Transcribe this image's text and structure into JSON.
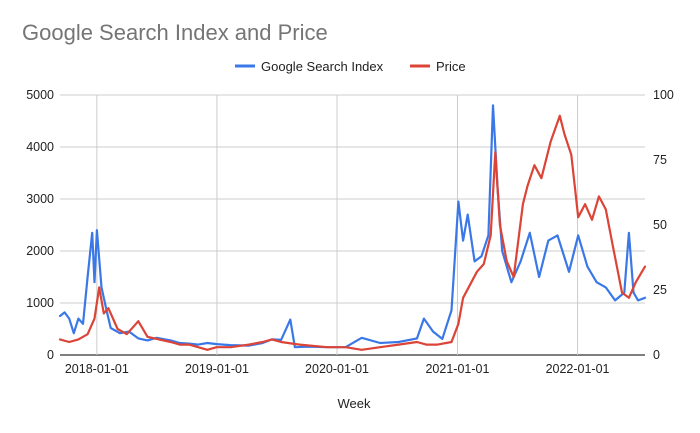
{
  "chart_data": {
    "type": "line",
    "title": "Google Search Index and Price",
    "xlabel": "Week",
    "ylabel_left": "",
    "ylabel_right": "",
    "x_axis": {
      "type": "date",
      "range": [
        "2017-09-11",
        "2022-07-25"
      ],
      "ticks": [
        "2018-01-01",
        "2019-01-01",
        "2020-01-01",
        "2021-01-01",
        "2022-01-01"
      ]
    },
    "y_left": {
      "range": [
        0,
        5000
      ],
      "ticks": [
        "0",
        "1000",
        "2000",
        "3000",
        "4000",
        "5000"
      ]
    },
    "y_right": {
      "range": [
        0,
        100
      ],
      "ticks": [
        "0",
        "25",
        "50",
        "75",
        "100"
      ]
    },
    "grid": true,
    "legend_position": "top",
    "series": [
      {
        "name": "Google Search Index",
        "axis": "left",
        "color": "#3b78e7",
        "points": [
          [
            "2017-09-11",
            750
          ],
          [
            "2017-09-25",
            820
          ],
          [
            "2017-10-09",
            700
          ],
          [
            "2017-10-23",
            420
          ],
          [
            "2017-11-06",
            700
          ],
          [
            "2017-11-20",
            600
          ],
          [
            "2017-12-04",
            1500
          ],
          [
            "2017-12-18",
            2350
          ],
          [
            "2017-12-25",
            1400
          ],
          [
            "2018-01-01",
            2400
          ],
          [
            "2018-01-15",
            1300
          ],
          [
            "2018-01-29",
            900
          ],
          [
            "2018-02-12",
            520
          ],
          [
            "2018-03-12",
            420
          ],
          [
            "2018-04-09",
            450
          ],
          [
            "2018-05-07",
            320
          ],
          [
            "2018-06-04",
            280
          ],
          [
            "2018-07-02",
            330
          ],
          [
            "2018-08-13",
            280
          ],
          [
            "2018-09-10",
            230
          ],
          [
            "2018-10-08",
            220
          ],
          [
            "2018-11-05",
            200
          ],
          [
            "2018-12-03",
            230
          ],
          [
            "2018-12-31",
            210
          ],
          [
            "2019-02-11",
            190
          ],
          [
            "2019-04-08",
            180
          ],
          [
            "2019-05-20",
            230
          ],
          [
            "2019-06-17",
            300
          ],
          [
            "2019-07-15",
            290
          ],
          [
            "2019-08-12",
            680
          ],
          [
            "2019-08-26",
            150
          ],
          [
            "2019-10-07",
            160
          ],
          [
            "2019-12-02",
            150
          ],
          [
            "2020-01-27",
            150
          ],
          [
            "2020-03-16",
            330
          ],
          [
            "2020-05-11",
            230
          ],
          [
            "2020-07-06",
            250
          ],
          [
            "2020-08-31",
            320
          ],
          [
            "2020-09-21",
            700
          ],
          [
            "2020-10-19",
            450
          ],
          [
            "2020-11-16",
            310
          ],
          [
            "2020-12-14",
            860
          ],
          [
            "2021-01-04",
            2950
          ],
          [
            "2021-01-18",
            2200
          ],
          [
            "2021-02-01",
            2700
          ],
          [
            "2021-02-22",
            1800
          ],
          [
            "2021-03-15",
            1900
          ],
          [
            "2021-04-05",
            2300
          ],
          [
            "2021-04-19",
            4800
          ],
          [
            "2021-05-03",
            3200
          ],
          [
            "2021-05-17",
            2000
          ],
          [
            "2021-06-14",
            1400
          ],
          [
            "2021-07-12",
            1800
          ],
          [
            "2021-08-09",
            2350
          ],
          [
            "2021-09-06",
            1500
          ],
          [
            "2021-10-04",
            2200
          ],
          [
            "2021-11-01",
            2300
          ],
          [
            "2021-12-06",
            1600
          ],
          [
            "2022-01-03",
            2300
          ],
          [
            "2022-01-31",
            1700
          ],
          [
            "2022-02-28",
            1400
          ],
          [
            "2022-03-28",
            1300
          ],
          [
            "2022-04-25",
            1050
          ],
          [
            "2022-05-23",
            1200
          ],
          [
            "2022-06-06",
            2350
          ],
          [
            "2022-06-20",
            1200
          ],
          [
            "2022-07-04",
            1050
          ],
          [
            "2022-07-25",
            1100
          ]
        ]
      },
      {
        "name": "Price",
        "axis": "right",
        "color": "#db4437",
        "points": [
          [
            "2017-09-11",
            6
          ],
          [
            "2017-10-09",
            5
          ],
          [
            "2017-11-06",
            6
          ],
          [
            "2017-12-04",
            8
          ],
          [
            "2017-12-25",
            14
          ],
          [
            "2018-01-08",
            26
          ],
          [
            "2018-01-22",
            16
          ],
          [
            "2018-02-05",
            18
          ],
          [
            "2018-03-05",
            10
          ],
          [
            "2018-04-02",
            8
          ],
          [
            "2018-05-07",
            13
          ],
          [
            "2018-06-04",
            7
          ],
          [
            "2018-07-09",
            6
          ],
          [
            "2018-08-13",
            5
          ],
          [
            "2018-09-10",
            4
          ],
          [
            "2018-10-08",
            4
          ],
          [
            "2018-11-05",
            3
          ],
          [
            "2018-12-03",
            2
          ],
          [
            "2018-12-31",
            3
          ],
          [
            "2019-02-11",
            3
          ],
          [
            "2019-04-08",
            4
          ],
          [
            "2019-05-20",
            5
          ],
          [
            "2019-06-17",
            6
          ],
          [
            "2019-07-15",
            5
          ],
          [
            "2019-09-09",
            4
          ],
          [
            "2019-12-02",
            3
          ],
          [
            "2020-01-27",
            3
          ],
          [
            "2020-03-16",
            2
          ],
          [
            "2020-05-11",
            3
          ],
          [
            "2020-07-06",
            4
          ],
          [
            "2020-08-31",
            5
          ],
          [
            "2020-09-28",
            4
          ],
          [
            "2020-11-02",
            4
          ],
          [
            "2020-12-14",
            5
          ],
          [
            "2021-01-04",
            12
          ],
          [
            "2021-01-18",
            22
          ],
          [
            "2021-02-08",
            27
          ],
          [
            "2021-03-01",
            32
          ],
          [
            "2021-03-22",
            35
          ],
          [
            "2021-04-12",
            46
          ],
          [
            "2021-04-26",
            78
          ],
          [
            "2021-05-10",
            50
          ],
          [
            "2021-05-31",
            36
          ],
          [
            "2021-06-21",
            30
          ],
          [
            "2021-07-19",
            58
          ],
          [
            "2021-08-02",
            65
          ],
          [
            "2021-08-23",
            73
          ],
          [
            "2021-09-13",
            68
          ],
          [
            "2021-10-11",
            82
          ],
          [
            "2021-11-08",
            92
          ],
          [
            "2021-11-22",
            85
          ],
          [
            "2021-12-13",
            77
          ],
          [
            "2022-01-03",
            53
          ],
          [
            "2022-01-24",
            58
          ],
          [
            "2022-02-14",
            52
          ],
          [
            "2022-03-07",
            61
          ],
          [
            "2022-03-28",
            56
          ],
          [
            "2022-04-18",
            42
          ],
          [
            "2022-05-16",
            24
          ],
          [
            "2022-06-06",
            22
          ],
          [
            "2022-06-27",
            28
          ],
          [
            "2022-07-25",
            34
          ]
        ]
      }
    ]
  }
}
